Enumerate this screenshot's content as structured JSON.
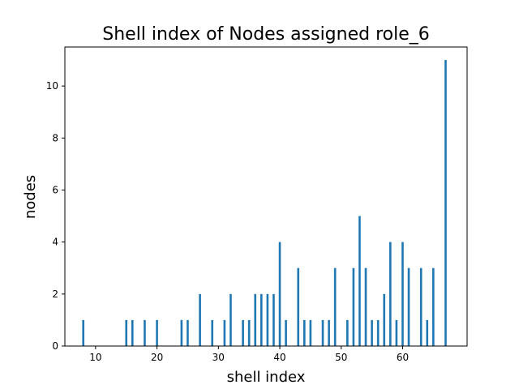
{
  "chart_data": {
    "type": "bar",
    "title": "Shell index of Nodes assigned role_6",
    "xlabel": "shell index",
    "ylabel": "nodes",
    "xlim": [
      5,
      70.5
    ],
    "ylim": [
      0,
      11.5
    ],
    "xticks": [
      10,
      20,
      30,
      40,
      50,
      60
    ],
    "yticks": [
      0,
      2,
      4,
      6,
      8,
      10
    ],
    "bar_color": "#1f77b4",
    "grid": false,
    "points": [
      {
        "x": 8,
        "y": 1
      },
      {
        "x": 15,
        "y": 1
      },
      {
        "x": 16,
        "y": 1
      },
      {
        "x": 18,
        "y": 1
      },
      {
        "x": 20,
        "y": 1
      },
      {
        "x": 24,
        "y": 1
      },
      {
        "x": 25,
        "y": 1
      },
      {
        "x": 27,
        "y": 2
      },
      {
        "x": 29,
        "y": 1
      },
      {
        "x": 31,
        "y": 1
      },
      {
        "x": 32,
        "y": 2
      },
      {
        "x": 34,
        "y": 1
      },
      {
        "x": 35,
        "y": 1
      },
      {
        "x": 36,
        "y": 2
      },
      {
        "x": 37,
        "y": 2
      },
      {
        "x": 38,
        "y": 2
      },
      {
        "x": 39,
        "y": 2
      },
      {
        "x": 40,
        "y": 4
      },
      {
        "x": 41,
        "y": 1
      },
      {
        "x": 43,
        "y": 3
      },
      {
        "x": 44,
        "y": 1
      },
      {
        "x": 45,
        "y": 1
      },
      {
        "x": 47,
        "y": 1
      },
      {
        "x": 48,
        "y": 1
      },
      {
        "x": 49,
        "y": 3
      },
      {
        "x": 51,
        "y": 1
      },
      {
        "x": 52,
        "y": 3
      },
      {
        "x": 53,
        "y": 5
      },
      {
        "x": 54,
        "y": 3
      },
      {
        "x": 55,
        "y": 1
      },
      {
        "x": 56,
        "y": 1
      },
      {
        "x": 57,
        "y": 2
      },
      {
        "x": 58,
        "y": 4
      },
      {
        "x": 59,
        "y": 1
      },
      {
        "x": 60,
        "y": 4
      },
      {
        "x": 61,
        "y": 3
      },
      {
        "x": 63,
        "y": 3
      },
      {
        "x": 64,
        "y": 1
      },
      {
        "x": 65,
        "y": 3
      },
      {
        "x": 67,
        "y": 11
      }
    ]
  }
}
